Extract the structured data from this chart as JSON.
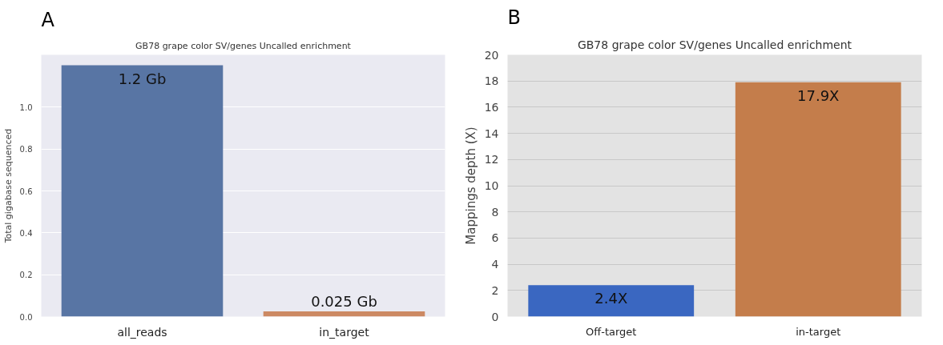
{
  "chart_data": [
    {
      "type": "bar",
      "title": "GB78 grape color SV/genes Uncalled enrichment",
      "annotations": [
        "A"
      ],
      "ylabel": "Total gigabase sequenced",
      "categories": [
        "all_reads",
        "in_target"
      ],
      "values": [
        1.2,
        0.025
      ],
      "colors": [
        "#5875a4",
        "#cc8963"
      ],
      "value_labels": [
        "1.2 Gb",
        "0.025 Gb"
      ],
      "ylim": [
        0,
        1.25
      ],
      "yticks": [
        {
          "value": 0,
          "label": "0.0"
        },
        {
          "value": 0.2,
          "label": "0.2"
        },
        {
          "value": 0.4,
          "label": "0.4"
        },
        {
          "value": 0.6,
          "label": "0.6"
        },
        {
          "value": 0.8,
          "label": "0.8"
        },
        {
          "value": 1,
          "label": "1.0"
        }
      ],
      "grid": "y"
    },
    {
      "type": "bar",
      "title": "GB78 grape color SV/genes Uncalled enrichment",
      "annotations": [
        "B"
      ],
      "ylabel": "Mappings depth (X)",
      "categories": [
        "Off-target",
        "in-target"
      ],
      "values": [
        2.4,
        17.9
      ],
      "colors": [
        "#3a67c1",
        "#c47d4b"
      ],
      "value_labels": [
        "2.4X",
        "17.9X"
      ],
      "ylim": [
        0,
        20
      ],
      "yticks": [
        0,
        2,
        4,
        6,
        8,
        10,
        12,
        14,
        16,
        18,
        20
      ],
      "grid": "y"
    }
  ]
}
